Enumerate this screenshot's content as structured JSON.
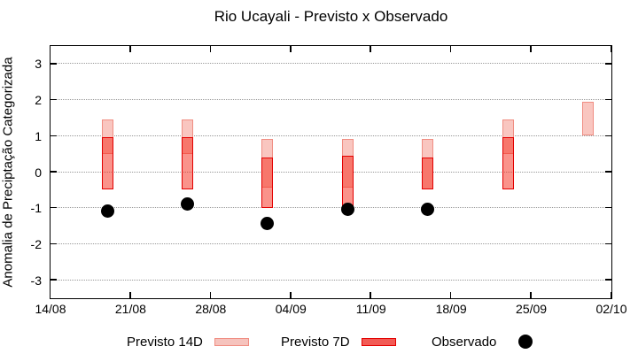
{
  "chart_data": {
    "type": "range-bar+scatter",
    "title": "Rio Ucayali - Previsto x Observado",
    "ylabel": "Anomalia de Preciptação Categorizada",
    "xlabel": "",
    "ylim": [
      -3.5,
      3.5
    ],
    "yticks": [
      3,
      2,
      1,
      0,
      -1,
      -2,
      -3
    ],
    "xticks": [
      "14/08",
      "21/08",
      "28/08",
      "04/09",
      "11/09",
      "18/09",
      "25/09",
      "02/10"
    ],
    "xtick_interval_days": 7,
    "grid": "horizontal dotted gray",
    "legend_position": "bottom",
    "series": [
      {
        "name": "Previsto 14D",
        "type": "range-bar",
        "fill": "#f9c6c0",
        "border": "#f08d82"
      },
      {
        "name": "Previsto 7D",
        "type": "range-bar",
        "fill": "#f52717",
        "fill_opacity": 0.5,
        "border": "#e30000"
      },
      {
        "name": "Observado",
        "type": "scatter",
        "color": "#000000"
      }
    ],
    "legend_swatch_colors": {
      "previsto_14d_fill": "#f6c3bd",
      "previsto_14d_border": "#f08d82",
      "previsto_7d_fill": "#f25b55",
      "previsto_7d_border": "#e30000",
      "observado": "#000000"
    },
    "points": [
      {
        "date": "19/08",
        "day_offset": 5,
        "previsto_14d": [
          0.5,
          1.45
        ],
        "previsto_7d": [
          -0.5,
          0.95
        ],
        "observado": -1.1
      },
      {
        "date": "26/08",
        "day_offset": 12,
        "previsto_14d": [
          0.5,
          1.45
        ],
        "previsto_7d": [
          -0.5,
          0.95
        ],
        "observado": -0.9
      },
      {
        "date": "02/09",
        "day_offset": 19,
        "previsto_14d": [
          -0.45,
          0.9
        ],
        "previsto_7d": [
          -1.0,
          0.4
        ],
        "observado": -1.43
      },
      {
        "date": "09/09",
        "day_offset": 26,
        "previsto_14d": [
          -0.45,
          0.9
        ],
        "previsto_7d": [
          -0.95,
          0.45
        ],
        "observado": -1.05
      },
      {
        "date": "16/09",
        "day_offset": 33,
        "previsto_14d": [
          -0.5,
          0.9
        ],
        "previsto_7d": [
          -0.5,
          0.4
        ],
        "observado": -1.05
      },
      {
        "date": "23/09",
        "day_offset": 40,
        "previsto_14d": [
          0.5,
          1.45
        ],
        "previsto_7d": [
          -0.5,
          0.95
        ],
        "observado": null
      },
      {
        "date": "30/09",
        "day_offset": 47,
        "previsto_14d": [
          1.0,
          1.95
        ],
        "previsto_7d": null,
        "observado": null
      }
    ]
  }
}
